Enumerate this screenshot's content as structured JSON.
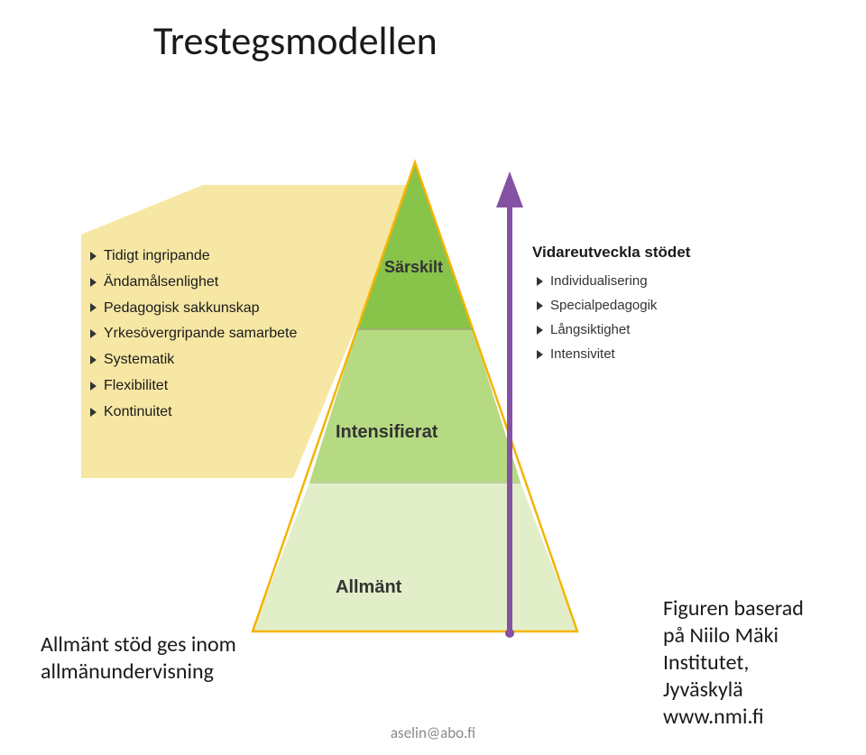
{
  "title": "Trestegsmodellen",
  "diagram": {
    "type": "infographic",
    "background_color": "#ffffff",
    "triangle_stroke": "#f5b400",
    "triangle_stroke_width": 2.5,
    "base_fill": "#f7e7a4",
    "tiers": [
      {
        "key": "sarskilt",
        "label": "Särskilt",
        "fill": "#88c34a",
        "label_fontsize": 18
      },
      {
        "key": "intensifierat",
        "label": "Intensifierat",
        "fill": "#b6da82",
        "label_fontsize": 20
      },
      {
        "key": "allmant",
        "label": "Allmänt",
        "fill": "#e2eec8",
        "label_fontsize": 20
      }
    ],
    "arrow": {
      "color": "#8551a3",
      "width": 6,
      "head_size": 18
    },
    "left_list": {
      "items": [
        "Tidigt ingripande",
        "Ändamålsenlighet",
        "Pedagogisk sakkunskap",
        "Yrkesövergripande samarbete",
        "Systematik",
        "Flexibilitet",
        "Kontinuitet"
      ],
      "fontsize": 16,
      "bullet_color": "#333333"
    },
    "right_section": {
      "heading": "Vidareutveckla stödet",
      "heading_fontsize": 17,
      "items": [
        "Individualisering",
        "Specialpedagogik",
        "Långsiktighet",
        "Intensivitet"
      ],
      "fontsize": 15,
      "bullet_color": "#333333"
    }
  },
  "caption_left_line1": "Allmänt stöd ges inom",
  "caption_left_line2": "allmänundervisning",
  "caption_right_line1": "Figuren baserad",
  "caption_right_line2": "på Niilo Mäki",
  "caption_right_line3": "Institutet,",
  "caption_right_line4": "Jyväskylä",
  "caption_right_line5": "www.nmi.fi",
  "footer_email": "aselin@abo.fi"
}
